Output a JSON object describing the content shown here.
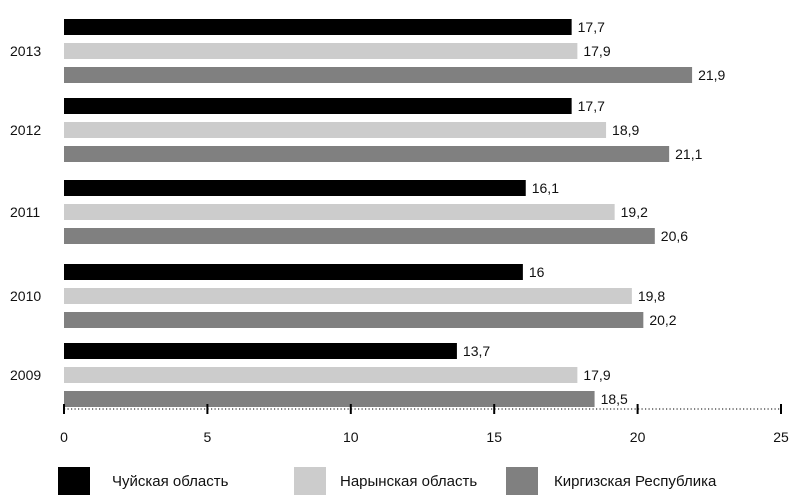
{
  "chart_data": {
    "type": "bar",
    "orientation": "horizontal",
    "categories": [
      "2013",
      "2012",
      "2011",
      "2010",
      "2009"
    ],
    "series": [
      {
        "name": "Чуйская область",
        "color": "#000000",
        "values": [
          17.7,
          17.7,
          16.1,
          16,
          13.7
        ],
        "labels": [
          "17,7",
          "17,7",
          "16,1",
          "16",
          "13,7"
        ]
      },
      {
        "name": "Нарынская область",
        "color": "#cccccc",
        "values": [
          17.9,
          18.9,
          19.2,
          19.8,
          17.9
        ],
        "labels": [
          "17,9",
          "18,9",
          "19,2",
          "19,8",
          "17,9"
        ]
      },
      {
        "name": "Киргизская Республика",
        "color": "#808080",
        "values": [
          21.9,
          21.1,
          20.6,
          20.2,
          18.5
        ],
        "labels": [
          "21,9",
          "21,1",
          "20,6",
          "20,2",
          "18,5"
        ]
      }
    ],
    "xlim": [
      0,
      25
    ],
    "xticks": [
      "0",
      "5",
      "10",
      "15",
      "20",
      "25"
    ],
    "xlabel": "",
    "ylabel": "",
    "title": "",
    "grid": false,
    "legend_position": "bottom"
  },
  "legend": [
    {
      "label": "Чуйская область",
      "color": "#000000"
    },
    {
      "label": "Нарынская область",
      "color": "#cccccc"
    },
    {
      "label": "Киргизская Республика",
      "color": "#808080"
    }
  ]
}
